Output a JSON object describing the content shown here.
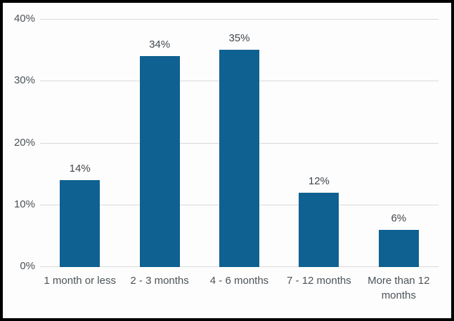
{
  "chart_data": {
    "type": "bar",
    "title": "",
    "xlabel": "",
    "ylabel": "",
    "categories": [
      "1 month or less",
      "2 - 3 months",
      "4 - 6 months",
      "7 - 12 months",
      "More than 12 months"
    ],
    "values": [
      14,
      34,
      35,
      12,
      6
    ],
    "data_labels": [
      "14%",
      "34%",
      "35%",
      "12%",
      "6%"
    ],
    "ylim": [
      0,
      40
    ],
    "ytick_values": [
      0,
      10,
      20,
      30,
      40
    ],
    "ytick_labels": [
      "0%",
      "10%",
      "20%",
      "30%",
      "40%"
    ],
    "grid": true,
    "legend": "none"
  },
  "colors": {
    "bar": "#0e6190",
    "gridline": "#d9d9d9",
    "tick_text": "#4c5257",
    "label_text": "#41474d",
    "border": "#000000",
    "background": "#fdfdfd"
  }
}
